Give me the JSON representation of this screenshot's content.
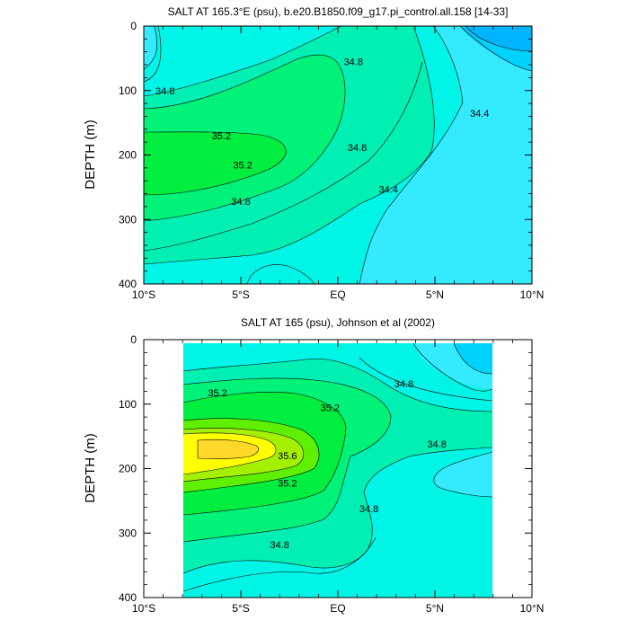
{
  "chart_data": [
    {
      "type": "heatmap",
      "title": "SALT AT 165.3°E (psu), b.e20.B1850.f09_g17.pi_control.all.158 [14-33]",
      "ylabel": "DEPTH (m)",
      "xticks": [
        "10°S",
        "5°S",
        "EQ",
        "5°N",
        "10°N"
      ],
      "yticks": [
        "0",
        "100",
        "200",
        "300",
        "400"
      ],
      "xlim": [
        -10,
        10
      ],
      "ylim": [
        400,
        0
      ],
      "data_extent": {
        "lat": [
          -10,
          10
        ],
        "depth": [
          0,
          400
        ]
      },
      "contour_labels": [
        {
          "text": "34.8",
          "lat": 0.8,
          "depth": 55
        },
        {
          "text": "34.8",
          "lat": -8.9,
          "depth": 100
        },
        {
          "text": "35.2",
          "lat": -6.0,
          "depth": 170
        },
        {
          "text": "35.2",
          "lat": -4.9,
          "depth": 215
        },
        {
          "text": "34.8",
          "lat": 1.0,
          "depth": 188
        },
        {
          "text": "34.8",
          "lat": -5.0,
          "depth": 272
        },
        {
          "text": "34.4",
          "lat": 7.3,
          "depth": 135
        },
        {
          "text": "34.4",
          "lat": 2.6,
          "depth": 253
        }
      ]
    },
    {
      "type": "heatmap",
      "title": "SALT AT 165 (psu), Johnson et al (2002)",
      "ylabel": "DEPTH (m)",
      "xticks": [
        "10°S",
        "5°S",
        "EQ",
        "5°N",
        "10°N"
      ],
      "yticks": [
        "0",
        "100",
        "200",
        "300",
        "400"
      ],
      "xlim": [
        -10,
        10
      ],
      "ylim": [
        400,
        0
      ],
      "data_extent": {
        "lat": [
          -8,
          8
        ],
        "depth": [
          5,
          400
        ]
      },
      "contour_labels": [
        {
          "text": "35.2",
          "lat": -6.2,
          "depth": 82
        },
        {
          "text": "35.2",
          "lat": -0.4,
          "depth": 105
        },
        {
          "text": "34.8",
          "lat": 3.4,
          "depth": 68
        },
        {
          "text": "35.6",
          "lat": -2.6,
          "depth": 180
        },
        {
          "text": "35.2",
          "lat": -2.6,
          "depth": 222
        },
        {
          "text": "34.8",
          "lat": 5.1,
          "depth": 162
        },
        {
          "text": "34.8",
          "lat": 1.6,
          "depth": 262
        },
        {
          "text": "34.8",
          "lat": -3.0,
          "depth": 318
        }
      ]
    }
  ],
  "colors": {
    "c34_0": "#00b4ff",
    "c34_2": "#00d2ff",
    "c34_4": "#33eaff",
    "c34_6": "#00f5e6",
    "c34_8": "#00f0b4",
    "c35_0": "#00f278",
    "c35_2": "#00ee40",
    "c35_4": "#5ef000",
    "c35_6": "#a5f000",
    "c35_8": "#ffff00",
    "c36_0": "#ffd82a"
  }
}
